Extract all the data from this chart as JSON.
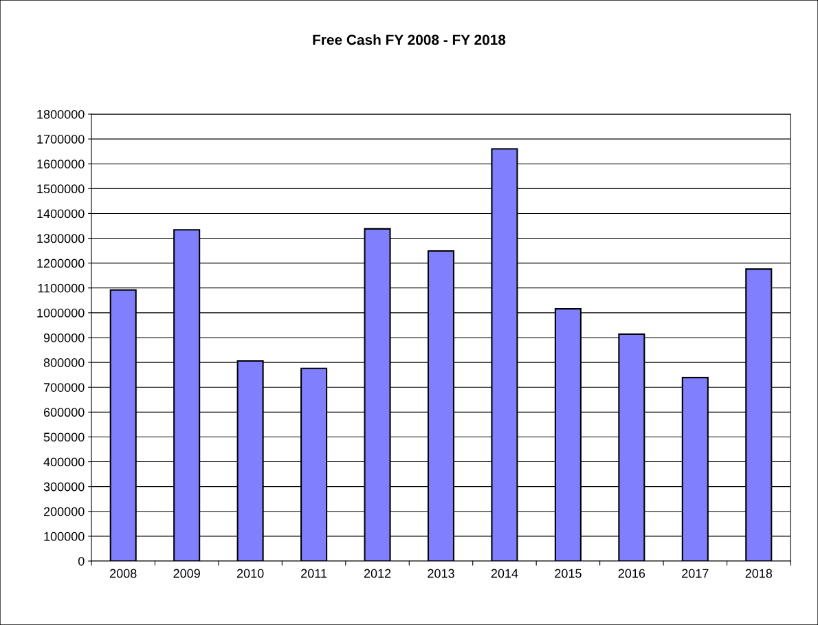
{
  "chart_data": {
    "type": "bar",
    "title": "Free Cash FY 2008 - FY 2018",
    "categories": [
      "2008",
      "2009",
      "2010",
      "2011",
      "2012",
      "2013",
      "2014",
      "2015",
      "2016",
      "2017",
      "2018"
    ],
    "values": [
      1092000,
      1334000,
      806000,
      776000,
      1338000,
      1249000,
      1660000,
      1016000,
      914000,
      739000,
      1176000
    ],
    "color": "#8080ff",
    "ylim": [
      0,
      1800000
    ],
    "yticks": [
      0,
      100000,
      200000,
      300000,
      400000,
      500000,
      600000,
      700000,
      800000,
      900000,
      1000000,
      1100000,
      1200000,
      1300000,
      1400000,
      1500000,
      1600000,
      1700000,
      1800000
    ],
    "grid": "y"
  }
}
